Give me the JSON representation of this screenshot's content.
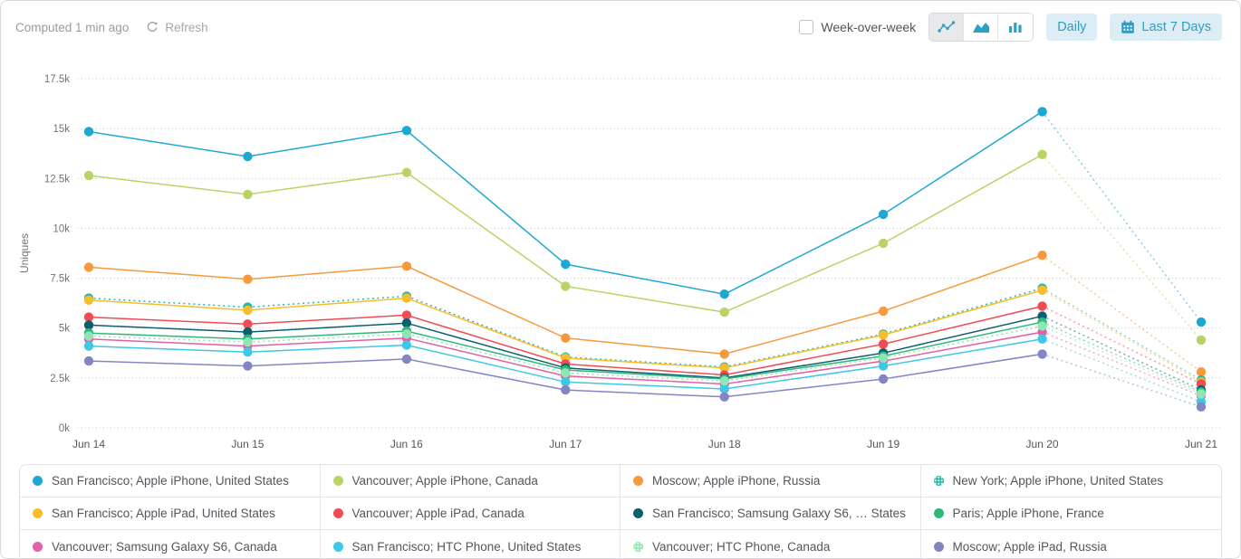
{
  "header": {
    "computed_text": "Computed 1 min ago",
    "refresh_label": "Refresh",
    "week_over_week_label": "Week-over-week",
    "week_over_week_checked": false,
    "chart_type_selected": "line",
    "daily_label": "Daily",
    "date_range_label": "Last 7 Days",
    "accent_color": "#2e9fc4",
    "muted_color": "#9a9aa2"
  },
  "chart_data": {
    "type": "line",
    "title": "",
    "xlabel": "",
    "ylabel": "Uniques",
    "x": [
      "Jun 14",
      "Jun 15",
      "Jun 16",
      "Jun 17",
      "Jun 18",
      "Jun 19",
      "Jun 20",
      "Jun 21"
    ],
    "ylim": [
      0,
      17500
    ],
    "ytick_labels": [
      "0k",
      "2.5k",
      "5k",
      "7.5k",
      "10k",
      "12.5k",
      "15k",
      "17.5k"
    ],
    "grid": "horizontal-dotted",
    "legend_position": "bottom",
    "last_segment_incomplete_dotted": true,
    "series": [
      {
        "name": "San Francisco; Apple iPhone, United States",
        "color": "#1da8d4",
        "dotted": false,
        "values": [
          14850,
          13600,
          14900,
          8200,
          6700,
          10700,
          15850,
          5300
        ]
      },
      {
        "name": "Vancouver; Apple iPhone, Canada",
        "color": "#b9d465",
        "dotted": false,
        "values": [
          12650,
          11700,
          12800,
          7100,
          5800,
          9250,
          13700,
          4400
        ]
      },
      {
        "name": "Moscow; Apple iPhone, Russia",
        "color": "#f79a3e",
        "dotted": false,
        "values": [
          8050,
          7450,
          8100,
          4500,
          3700,
          5850,
          8650,
          2800
        ]
      },
      {
        "name": "New York; Apple iPhone, United States",
        "color": "#28b7ab",
        "dotted": true,
        "values": [
          6500,
          6050,
          6600,
          3550,
          3050,
          4700,
          7000,
          2400
        ]
      },
      {
        "name": "San Francisco; Apple iPad, United States",
        "color": "#f8bd2b",
        "dotted": false,
        "values": [
          6400,
          5900,
          6500,
          3500,
          3000,
          4650,
          6900,
          2300
        ]
      },
      {
        "name": "Vancouver; Apple iPad, Canada",
        "color": "#f14b54",
        "dotted": false,
        "values": [
          5550,
          5200,
          5650,
          3200,
          2650,
          4200,
          6100,
          2200
        ]
      },
      {
        "name": "San Francisco; Samsung Galaxy S6, …  States",
        "color": "#0e5f6e",
        "dotted": false,
        "values": [
          5150,
          4800,
          5250,
          3000,
          2500,
          3750,
          5600,
          1900
        ]
      },
      {
        "name": "Paris; Apple iPhone, France",
        "color": "#2eb87a",
        "dotted": false,
        "values": [
          4750,
          4450,
          4850,
          2900,
          2450,
          3600,
          5300,
          1800
        ]
      },
      {
        "name": "Vancouver; Samsung Galaxy S6, Canada",
        "color": "#e35fa8",
        "dotted": false,
        "values": [
          4450,
          4100,
          4500,
          2600,
          2200,
          3350,
          4800,
          1600
        ]
      },
      {
        "name": "San Francisco; HTC Phone, United States",
        "color": "#3ec8e8",
        "dotted": false,
        "values": [
          4100,
          3800,
          4150,
          2300,
          1950,
          3100,
          4450,
          1300
        ]
      },
      {
        "name": "Vancouver; HTC Phone, Canada",
        "color": "#8fe5b3",
        "dotted": true,
        "values": [
          4600,
          4300,
          4700,
          2750,
          2350,
          3500,
          5100,
          1700
        ]
      },
      {
        "name": "Moscow; Apple iPad, Russia",
        "color": "#8287c4",
        "dotted": false,
        "values": [
          3350,
          3100,
          3450,
          1900,
          1550,
          2450,
          3700,
          1050
        ]
      }
    ]
  },
  "legend": {
    "items": [
      {
        "label": "San Francisco; Apple iPhone, United States"
      },
      {
        "label": "Vancouver; Apple iPhone, Canada"
      },
      {
        "label": "Moscow; Apple iPhone, Russia"
      },
      {
        "label": "New York; Apple iPhone, United States"
      },
      {
        "label": "San Francisco; Apple iPad, United States"
      },
      {
        "label": "Vancouver; Apple iPad, Canada"
      },
      {
        "label": "San Francisco; Samsung Galaxy S6, …  States"
      },
      {
        "label": "Paris; Apple iPhone, France"
      },
      {
        "label": "Vancouver; Samsung Galaxy S6, Canada"
      },
      {
        "label": "San Francisco; HTC Phone, United States"
      },
      {
        "label": "Vancouver; HTC Phone, Canada"
      },
      {
        "label": "Moscow; Apple iPad, Russia"
      }
    ]
  }
}
